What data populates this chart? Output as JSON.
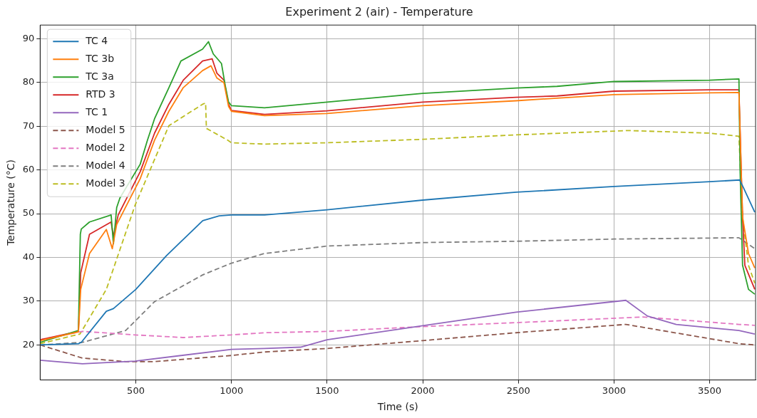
{
  "chart_data": {
    "type": "line",
    "title": "Experiment 2 (air) - Temperature",
    "xlabel": "Time (s)",
    "ylabel": "Temperature (°C)",
    "xlim": [
      0,
      3740
    ],
    "ylim": [
      12,
      93.1
    ],
    "xticks": [
      500,
      1000,
      1500,
      2000,
      2500,
      3000,
      3500
    ],
    "yticks": [
      20,
      30,
      40,
      50,
      60,
      70,
      80,
      90
    ],
    "grid": true,
    "legend": "top left",
    "marker": "none",
    "series": [
      {
        "name": "TC 4",
        "color": "#1f77b4",
        "line_style": "solid",
        "x": [
          0,
          200,
          215,
          346,
          383,
          500,
          660,
          850,
          936,
          1000,
          1173,
          1500,
          2000,
          2488,
          3000,
          3500,
          3657,
          3678,
          3736
        ],
        "values": [
          20,
          20.3,
          20.6,
          27.7,
          28.3,
          32.7,
          40.4,
          48.4,
          49.5,
          49.7,
          49.7,
          50.9,
          53.1,
          54.9,
          56.2,
          57.3,
          57.7,
          55.8,
          50.3
        ]
      },
      {
        "name": "TC 3b",
        "color": "#ff7f0e",
        "line_style": "solid",
        "x": [
          0,
          200,
          212,
          258,
          346,
          377,
          400,
          523,
          598,
          673,
          748,
          849,
          893,
          924,
          961,
          985,
          1000,
          1173,
          1500,
          2000,
          2488,
          2702,
          3000,
          3500,
          3653,
          3672,
          3703,
          3736
        ],
        "values": [
          21,
          23,
          32.7,
          40.9,
          46.4,
          42,
          47.5,
          58,
          66.8,
          73.4,
          78.8,
          82.7,
          83.8,
          81,
          79.9,
          74.5,
          73.4,
          72.4,
          72.9,
          74.7,
          75.8,
          76.4,
          77.2,
          77.6,
          77.7,
          49.2,
          40.9,
          37.6
        ]
      },
      {
        "name": "TC 3a",
        "color": "#2ca02c",
        "line_style": "solid",
        "x": [
          0,
          200,
          210,
          215,
          258,
          371,
          383,
          400,
          417,
          523,
          561,
          598,
          673,
          736,
          849,
          880,
          905,
          948,
          967,
          985,
          1000,
          1173,
          1500,
          2000,
          2488,
          2702,
          3000,
          3500,
          3653,
          3659,
          3672,
          3703,
          3736
        ],
        "values": [
          20.6,
          23.3,
          45.3,
          46.5,
          48.1,
          49.7,
          43.1,
          51.4,
          53.6,
          61.3,
          66.8,
          71.7,
          78.8,
          84.9,
          87.6,
          89.3,
          86.5,
          84.3,
          79.4,
          75.5,
          74.7,
          74.2,
          75.5,
          77.5,
          78.7,
          79.1,
          80.2,
          80.5,
          80.8,
          60.2,
          38.2,
          32.7,
          31.6
        ]
      },
      {
        "name": "RTD 3",
        "color": "#d62728",
        "line_style": "solid",
        "x": [
          0,
          200,
          212,
          258,
          371,
          383,
          408,
          523,
          598,
          673,
          748,
          849,
          899,
          924,
          961,
          985,
          1000,
          1173,
          1500,
          2000,
          2488,
          2702,
          3000,
          3500,
          3653,
          3672,
          3684,
          3736
        ],
        "values": [
          21.2,
          23.1,
          36.5,
          45.3,
          48.1,
          44.8,
          49.7,
          59.6,
          68.4,
          75,
          80.5,
          84.9,
          85.4,
          82.1,
          80.5,
          75,
          73.6,
          72.7,
          73.5,
          75.5,
          76.6,
          76.9,
          78,
          78.3,
          78.3,
          49.2,
          38.2,
          32.7
        ]
      },
      {
        "name": "TC 1",
        "color": "#9467bd",
        "line_style": "solid",
        "x": [
          0,
          221,
          496,
          1000,
          1173,
          1361,
          1500,
          2000,
          2488,
          3062,
          3175,
          3325,
          3653,
          3736
        ],
        "values": [
          16.5,
          15.7,
          16.3,
          19,
          19.2,
          19.5,
          21.2,
          24.4,
          27.5,
          30.2,
          26.6,
          24.7,
          23.3,
          22.5
        ]
      },
      {
        "name": "Model 5",
        "color": "#8c564b",
        "line_style": "dashed",
        "x": [
          0,
          221,
          447,
          598,
          1000,
          1173,
          1500,
          2000,
          2488,
          3062,
          3653,
          3736
        ],
        "values": [
          20,
          17,
          16.2,
          16.2,
          17.6,
          18.4,
          19.2,
          21,
          22.8,
          24.7,
          20.3,
          20
        ]
      },
      {
        "name": "Model 2",
        "color": "#e377c2",
        "line_style": "dashed",
        "x": [
          0,
          221,
          496,
          748,
          1000,
          1173,
          1500,
          2000,
          2488,
          3150,
          3653,
          3736
        ],
        "values": [
          21.2,
          23.1,
          22.3,
          21.7,
          22.3,
          22.8,
          23.1,
          24.2,
          25.1,
          26.4,
          24.7,
          24.5
        ]
      },
      {
        "name": "Model 4",
        "color": "#7f7f7f",
        "line_style": "dashed",
        "x": [
          0,
          221,
          447,
          598,
          849,
          1000,
          1173,
          1500,
          2000,
          2488,
          3000,
          3653,
          3736
        ],
        "values": [
          20,
          20.6,
          23.3,
          29.9,
          36,
          38.7,
          40.9,
          42.6,
          43.4,
          43.7,
          44.2,
          44.5,
          42
        ]
      },
      {
        "name": "Model 3",
        "color": "#bcbd22",
        "line_style": "dashed",
        "x": [
          0,
          208,
          346,
          496,
          673,
          849,
          865,
          869,
          980,
          1000,
          1173,
          1500,
          2000,
          2488,
          3075,
          3500,
          3653,
          3672,
          3703,
          3736
        ],
        "values": [
          20.3,
          22.5,
          32.7,
          51.9,
          70.1,
          75,
          75.3,
          69.5,
          66.8,
          66.2,
          65.9,
          66.2,
          67,
          68,
          69,
          68.4,
          67.7,
          49.2,
          38.2,
          34.1
        ]
      }
    ]
  }
}
